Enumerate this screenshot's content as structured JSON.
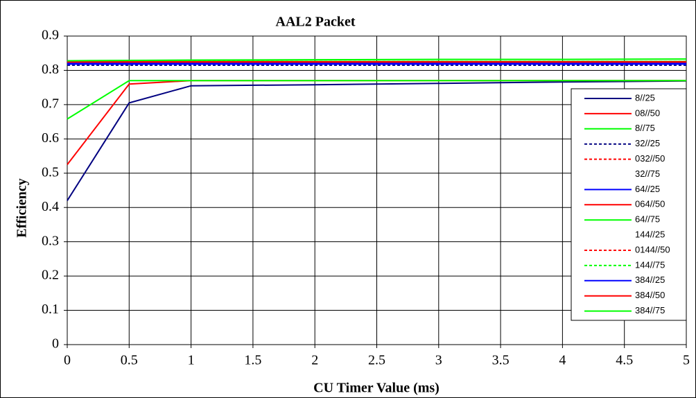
{
  "chart_data": {
    "type": "line",
    "title": "AAL2 Packet",
    "x_label": "CU Timer Value (ms)",
    "y_label": "Efficiency",
    "x": [
      0,
      0.5,
      1,
      2,
      3,
      4,
      5
    ],
    "xlim": [
      0,
      5
    ],
    "xticks": [
      0,
      0.5,
      1,
      1.5,
      2,
      2.5,
      3,
      3.5,
      4,
      4.5,
      5
    ],
    "ylim": [
      0,
      0.9
    ],
    "yticks": [
      0,
      0.1,
      0.2,
      0.3,
      0.4,
      0.5,
      0.6,
      0.7,
      0.8,
      0.9
    ],
    "grid": true,
    "legend": "right",
    "series": [
      {
        "name": "8//25",
        "color": "#000080",
        "dash": false,
        "values": [
          0.42,
          0.705,
          0.755,
          0.758,
          0.762,
          0.766,
          0.769
        ]
      },
      {
        "name": "08//50",
        "color": "#ff0000",
        "dash": false,
        "values": [
          0.525,
          0.76,
          0.77,
          0.77,
          0.77,
          0.77,
          0.77
        ]
      },
      {
        "name": "8//75",
        "color": "#00ff00",
        "dash": false,
        "values": [
          0.658,
          0.77,
          0.77,
          0.77,
          0.77,
          0.77,
          0.77
        ]
      },
      {
        "name": "32//25",
        "color": "#000080",
        "dash": true,
        "values": [
          0.815,
          0.815,
          0.815,
          0.815,
          0.815,
          0.815,
          0.815
        ]
      },
      {
        "name": "032//50",
        "color": "#ff0000",
        "dash": true,
        "values": [
          0.818,
          0.818,
          0.818,
          0.818,
          0.818,
          0.818,
          0.818
        ]
      },
      {
        "name": "32//75",
        "color": "none",
        "dash": false,
        "values": [
          0.82,
          0.82,
          0.82,
          0.82,
          0.82,
          0.82,
          0.82
        ]
      },
      {
        "name": "64//25",
        "color": "#0000ff",
        "dash": false,
        "values": [
          0.818,
          0.818,
          0.818,
          0.818,
          0.818,
          0.818,
          0.818
        ]
      },
      {
        "name": "064//50",
        "color": "#ff0000",
        "dash": false,
        "values": [
          0.822,
          0.822,
          0.822,
          0.822,
          0.822,
          0.822,
          0.822
        ]
      },
      {
        "name": "64//75",
        "color": "#00ff00",
        "dash": false,
        "values": [
          0.826,
          0.826,
          0.826,
          0.826,
          0.826,
          0.826,
          0.826
        ]
      },
      {
        "name": "144//25",
        "color": "none",
        "dash": false,
        "values": [
          0.82,
          0.82,
          0.82,
          0.82,
          0.82,
          0.82,
          0.82
        ]
      },
      {
        "name": "0144//50",
        "color": "#ff0000",
        "dash": true,
        "values": [
          0.822,
          0.822,
          0.822,
          0.822,
          0.822,
          0.822,
          0.822
        ]
      },
      {
        "name": "144//75",
        "color": "#00ff00",
        "dash": true,
        "values": [
          0.826,
          0.826,
          0.826,
          0.826,
          0.826,
          0.826,
          0.826
        ]
      },
      {
        "name": "384//25",
        "color": "#0000ff",
        "dash": false,
        "values": [
          0.82,
          0.82,
          0.82,
          0.82,
          0.82,
          0.82,
          0.82
        ]
      },
      {
        "name": "384//50",
        "color": "#ff0000",
        "dash": false,
        "values": [
          0.825,
          0.825,
          0.825,
          0.825,
          0.825,
          0.825,
          0.825
        ]
      },
      {
        "name": "384//75",
        "color": "#00ff00",
        "dash": false,
        "values": [
          0.828,
          0.829,
          0.83,
          0.831,
          0.832,
          0.832,
          0.833
        ]
      }
    ]
  }
}
